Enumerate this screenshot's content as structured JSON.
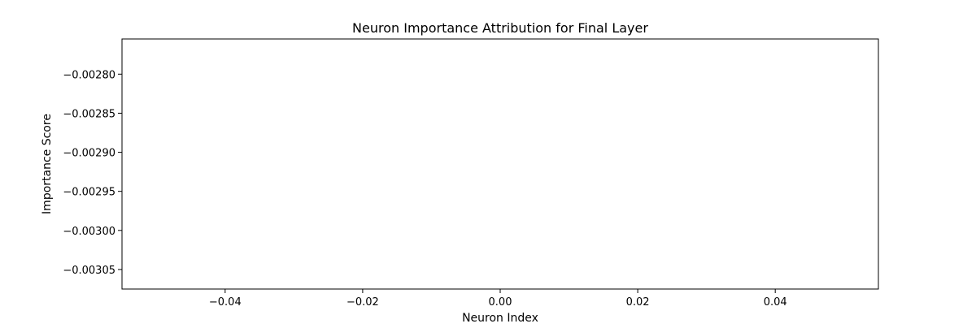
{
  "chart_data": {
    "type": "bar",
    "title": "Neuron Importance Attribution for Final Layer",
    "xlabel": "Neuron Index",
    "ylabel": "Importance Score",
    "xlim": [
      -0.055,
      0.055
    ],
    "ylim": [
      -0.003075,
      -0.002755
    ],
    "x_ticks": [
      -0.04,
      -0.02,
      0.0,
      0.02,
      0.04
    ],
    "x_tick_labels": [
      "−0.04",
      "−0.02",
      "0.00",
      "0.02",
      "0.04"
    ],
    "y_ticks": [
      -0.0028,
      -0.00285,
      -0.0029,
      -0.00295,
      -0.003,
      -0.00305
    ],
    "y_tick_labels": [
      "−0.00280",
      "−0.00285",
      "−0.00290",
      "−0.00295",
      "−0.00300",
      "−0.00305"
    ],
    "categories": [],
    "values": [],
    "grid": false,
    "legend": "none",
    "colors": {
      "axis": "#000000",
      "background": "#ffffff"
    }
  }
}
